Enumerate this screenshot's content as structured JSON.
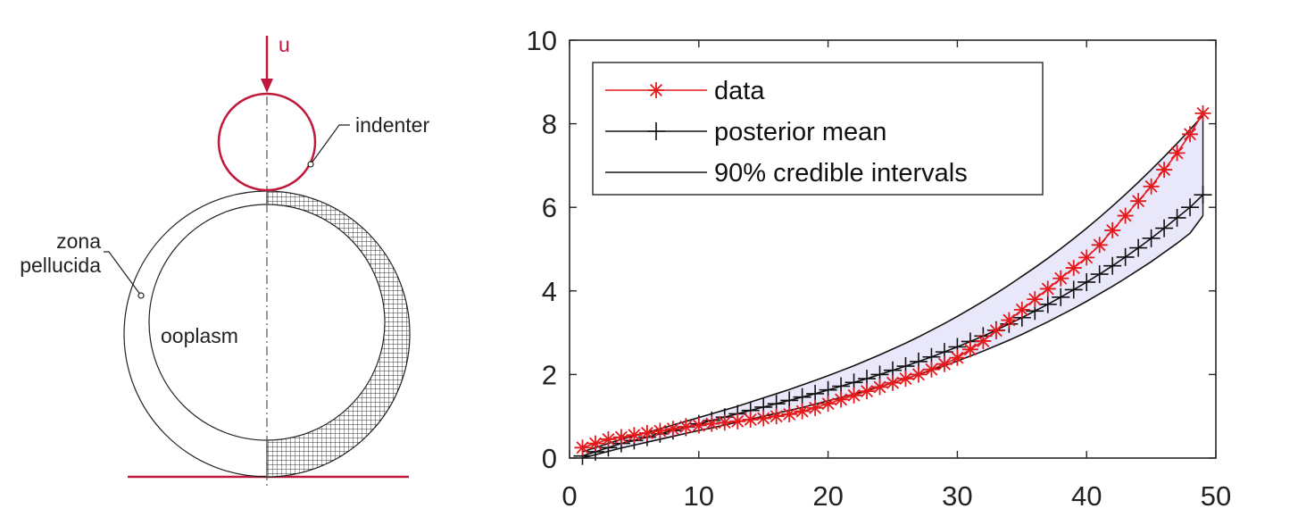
{
  "diagram": {
    "labels": {
      "displacement": "u",
      "indenter": "indenter",
      "zona_line1": "zona",
      "zona_line2": "pellucida",
      "ooplasm": "ooplasm"
    },
    "colors": {
      "indenter": "#c0183c",
      "outline": "#222222",
      "mesh": "#333333"
    }
  },
  "chart_data": {
    "type": "line",
    "x": [
      1,
      2,
      3,
      4,
      5,
      6,
      7,
      8,
      9,
      10,
      11,
      12,
      13,
      14,
      15,
      16,
      17,
      18,
      19,
      20,
      21,
      22,
      23,
      24,
      25,
      26,
      27,
      28,
      29,
      30,
      31,
      32,
      33,
      34,
      35,
      36,
      37,
      38,
      39,
      40,
      41,
      42,
      43,
      44,
      45,
      46,
      47,
      48,
      49
    ],
    "series": [
      {
        "name": "data",
        "color": "#e41a1c",
        "marker": "asterisk",
        "values": [
          0.25,
          0.35,
          0.45,
          0.5,
          0.55,
          0.6,
          0.65,
          0.7,
          0.75,
          0.78,
          0.82,
          0.85,
          0.88,
          0.92,
          0.95,
          1.0,
          1.05,
          1.12,
          1.2,
          1.3,
          1.4,
          1.5,
          1.6,
          1.7,
          1.8,
          1.9,
          2.0,
          2.12,
          2.25,
          2.4,
          2.6,
          2.8,
          3.05,
          3.3,
          3.55,
          3.8,
          4.05,
          4.3,
          4.55,
          4.8,
          5.1,
          5.45,
          5.8,
          6.15,
          6.5,
          6.9,
          7.3,
          7.75,
          8.25
        ]
      },
      {
        "name": "posterior mean",
        "color": "#111111",
        "marker": "plus",
        "values": [
          0.05,
          0.15,
          0.25,
          0.35,
          0.42,
          0.5,
          0.58,
          0.66,
          0.74,
          0.82,
          0.9,
          0.98,
          1.06,
          1.14,
          1.22,
          1.3,
          1.38,
          1.46,
          1.54,
          1.63,
          1.72,
          1.81,
          1.9,
          2.0,
          2.1,
          2.2,
          2.31,
          2.42,
          2.54,
          2.66,
          2.79,
          2.92,
          3.06,
          3.21,
          3.36,
          3.52,
          3.68,
          3.85,
          4.03,
          4.21,
          4.4,
          4.6,
          4.81,
          5.03,
          5.26,
          5.5,
          5.75,
          6.0,
          6.3
        ]
      },
      {
        "name": "90% credible intervals",
        "color": "#111111",
        "marker": "none",
        "fill": "#e8e8fa",
        "lower": [
          0.0,
          0.08,
          0.16,
          0.24,
          0.31,
          0.38,
          0.45,
          0.52,
          0.59,
          0.66,
          0.72,
          0.79,
          0.86,
          0.93,
          1.0,
          1.07,
          1.14,
          1.21,
          1.29,
          1.37,
          1.45,
          1.53,
          1.62,
          1.71,
          1.8,
          1.9,
          2.0,
          2.1,
          2.21,
          2.32,
          2.44,
          2.56,
          2.69,
          2.82,
          2.96,
          3.11,
          3.26,
          3.42,
          3.58,
          3.75,
          3.93,
          4.11,
          4.3,
          4.5,
          4.7,
          4.92,
          5.14,
          5.38,
          5.8
        ],
        "upper": [
          0.15,
          0.25,
          0.35,
          0.45,
          0.53,
          0.62,
          0.7,
          0.79,
          0.88,
          0.97,
          1.06,
          1.15,
          1.24,
          1.34,
          1.44,
          1.54,
          1.64,
          1.75,
          1.86,
          1.97,
          2.09,
          2.21,
          2.34,
          2.47,
          2.61,
          2.75,
          2.9,
          3.06,
          3.22,
          3.39,
          3.57,
          3.75,
          3.94,
          4.14,
          4.35,
          4.56,
          4.78,
          5.01,
          5.25,
          5.5,
          5.76,
          6.03,
          6.31,
          6.6,
          6.9,
          7.21,
          7.53,
          7.86,
          8.2
        ]
      }
    ],
    "xlim": [
      0,
      50
    ],
    "ylim": [
      0,
      10
    ],
    "xticks": [
      "0",
      "10",
      "20",
      "30",
      "40",
      "50"
    ],
    "yticks": [
      "0",
      "2",
      "4",
      "6",
      "8",
      "10"
    ],
    "legend": {
      "placement": "top-left",
      "entries": [
        "data",
        "posterior mean",
        "90% credible intervals"
      ]
    },
    "grid": false,
    "title": "",
    "xlabel": "",
    "ylabel": ""
  }
}
